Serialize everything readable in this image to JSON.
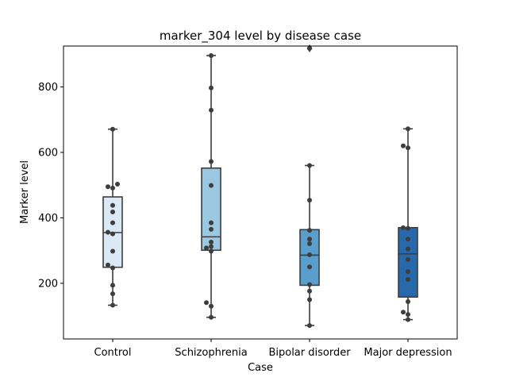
{
  "chart_data": {
    "type": "box",
    "title": "marker_304 level by disease case",
    "xlabel": "Case",
    "ylabel": "Marker level",
    "ylim": [
      30,
      925
    ],
    "yticks": [
      200,
      400,
      600,
      800
    ],
    "grid": false,
    "categories": [
      "Control",
      "Schizophrenia",
      "Bipolar disorder",
      "Major depression"
    ],
    "colors": [
      "#dbe9f6",
      "#9ac8e0",
      "#5a9ecd",
      "#2869ab"
    ],
    "boxes": [
      {
        "whisker_low": 133,
        "q1": 249,
        "median": 355,
        "q3": 464,
        "whisker_high": 671,
        "outliers": []
      },
      {
        "whisker_low": 96,
        "q1": 301,
        "median": 342,
        "q3": 552,
        "whisker_high": 896,
        "outliers": []
      },
      {
        "whisker_low": 71,
        "q1": 194,
        "median": 286,
        "q3": 364,
        "whisker_high": 560,
        "outliers": [
          918
        ]
      },
      {
        "whisker_low": 89,
        "q1": 158,
        "median": 290,
        "q3": 370,
        "whisker_high": 672,
        "outliers": []
      }
    ],
    "points": [
      [
        133,
        168,
        194,
        247,
        256,
        298,
        351,
        356,
        385,
        418,
        438,
        491,
        495,
        503,
        671
      ],
      [
        96,
        130,
        141,
        298,
        308,
        312,
        326,
        365,
        385,
        499,
        572,
        729,
        797,
        896
      ],
      [
        71,
        150,
        176,
        196,
        250,
        287,
        321,
        335,
        362,
        454,
        560,
        918
      ],
      [
        89,
        105,
        112,
        144,
        212,
        236,
        273,
        305,
        335,
        368,
        370,
        614,
        620,
        672
      ]
    ]
  }
}
